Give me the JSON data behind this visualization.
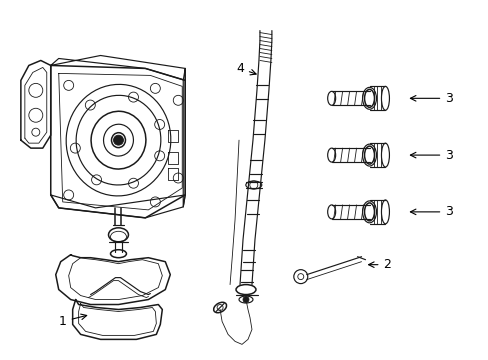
{
  "background_color": "#ffffff",
  "line_color": "#1a1a1a",
  "figsize": [
    4.89,
    3.6
  ],
  "dpi": 100,
  "lw_main": 1.1,
  "lw_thin": 0.6,
  "lw_med": 0.85,
  "label_fontsize": 9
}
